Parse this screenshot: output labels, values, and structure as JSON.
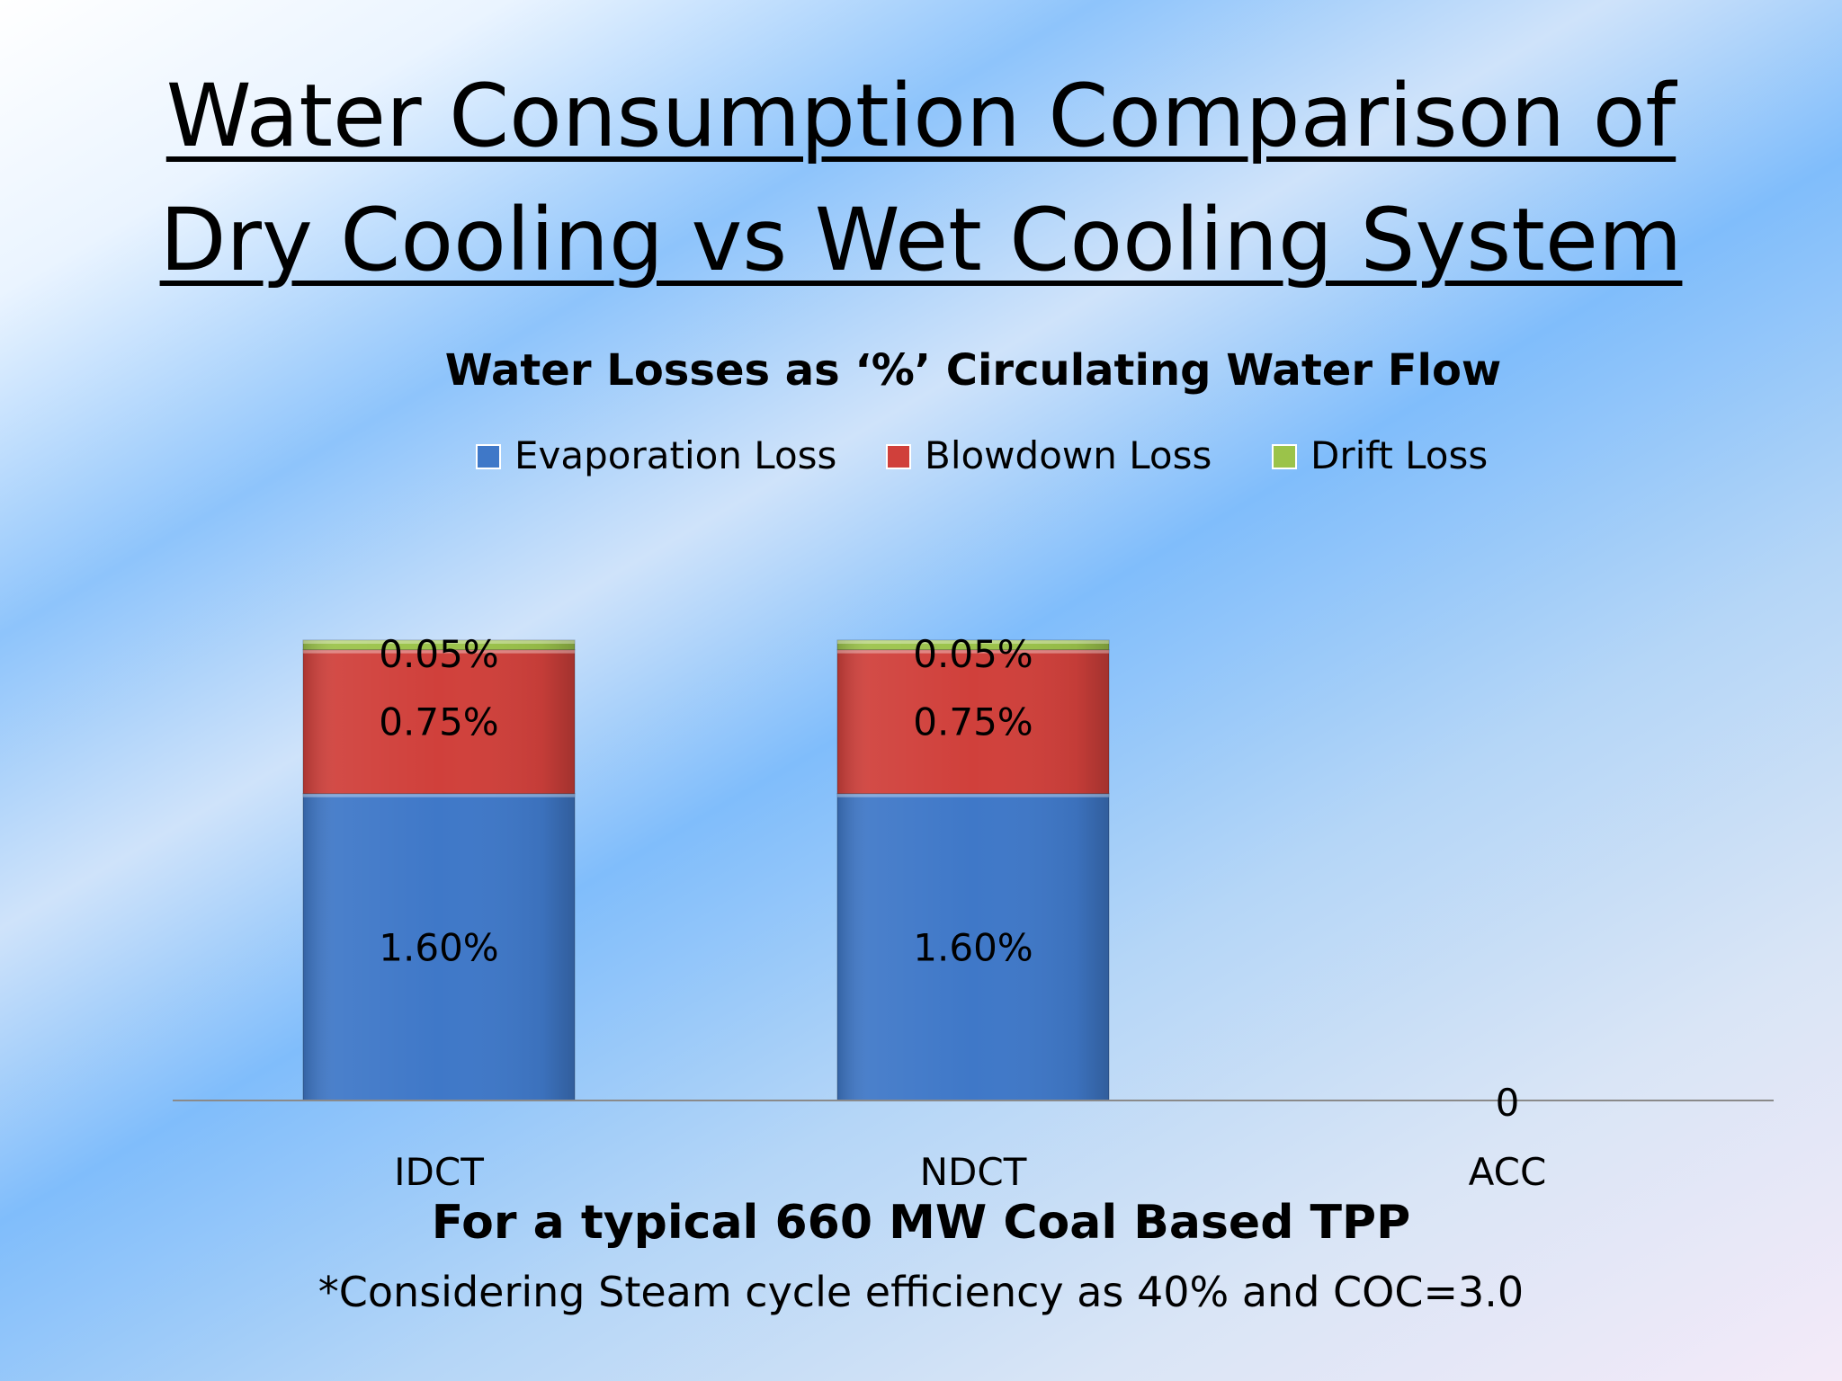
{
  "slide": {
    "title_line1": "Water Consumption Comparison of",
    "title_line2": "Dry Cooling vs Wet Cooling System",
    "footer_main": "For a typical 660 MW Coal Based TPP",
    "footer_note": "*Considering Steam cycle efficiency as 40% and COC=3.0"
  },
  "chart_data": {
    "type": "bar",
    "stacked": true,
    "title": "Water Losses as ‘%’ Circulating Water Flow",
    "categories": [
      "IDCT",
      "NDCT",
      "ACC"
    ],
    "series": [
      {
        "name": "Evaporation Loss",
        "values": [
          1.6,
          1.6,
          0
        ],
        "labels": [
          "1.60%",
          "1.60%",
          ""
        ],
        "color": "#3f78c8"
      },
      {
        "name": "Blowdown Loss",
        "values": [
          0.75,
          0.75,
          0
        ],
        "labels": [
          "0.75%",
          "0.75%",
          ""
        ],
        "color": "#d0403b"
      },
      {
        "name": "Drift Loss",
        "values": [
          0.05,
          0.05,
          0
        ],
        "labels": [
          "0.05%",
          "0.05%",
          ""
        ],
        "color": "#9bc34a"
      }
    ],
    "zero_label": "0",
    "ylim": [
      0,
      3
    ],
    "grid": false,
    "legend": "top"
  }
}
